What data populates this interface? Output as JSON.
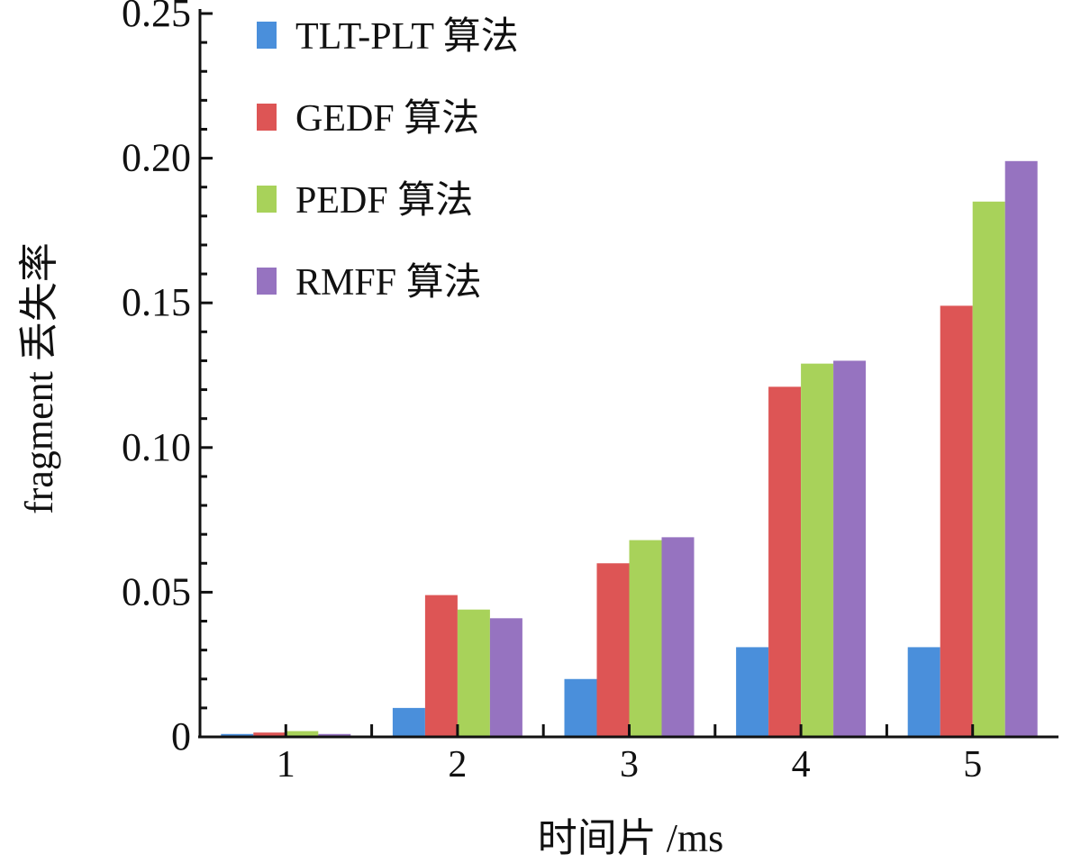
{
  "chart_data": {
    "type": "bar",
    "title": "",
    "xlabel": "时间片 /ms",
    "ylabel": "fragment 丢失率",
    "categories": [
      "1",
      "2",
      "3",
      "4",
      "5"
    ],
    "ylim": [
      0,
      0.25
    ],
    "yticks": [
      "0",
      "0.05",
      "0.10",
      "0.15",
      "0.20",
      "0.25"
    ],
    "ytick_values": [
      0,
      0.05,
      0.1,
      0.15,
      0.2,
      0.25
    ],
    "grid": false,
    "legend_position": "top-left",
    "series": [
      {
        "name": "TLT-PLT 算法",
        "color": "#4a8fdb",
        "values": [
          0.001,
          0.01,
          0.02,
          0.031,
          0.031
        ]
      },
      {
        "name": "GEDF 算法",
        "color": "#dd5555",
        "values": [
          0.0015,
          0.049,
          0.06,
          0.121,
          0.149
        ]
      },
      {
        "name": "PEDF 算法",
        "color": "#a8d25a",
        "values": [
          0.002,
          0.044,
          0.068,
          0.129,
          0.185
        ]
      },
      {
        "name": "RMFF 算法",
        "color": "#9673c0",
        "values": [
          0.001,
          0.041,
          0.069,
          0.13,
          0.199
        ]
      }
    ]
  }
}
